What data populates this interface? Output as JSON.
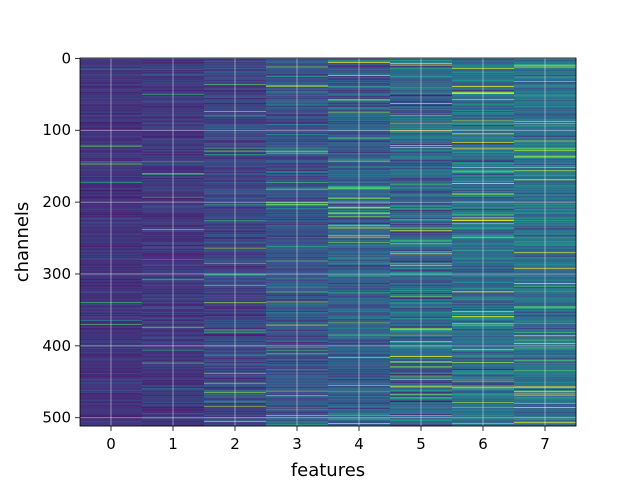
{
  "chart_data": {
    "type": "heatmap",
    "xlabel": "features",
    "ylabel": "channels",
    "x_categories": [
      "0",
      "1",
      "2",
      "3",
      "4",
      "5",
      "6",
      "7"
    ],
    "x_ticks": [
      0,
      1,
      2,
      3,
      4,
      5,
      6,
      7
    ],
    "y_ticks": [
      0,
      100,
      200,
      300,
      400,
      500
    ],
    "n_rows": 512,
    "n_cols": 8,
    "y_inverted": true,
    "grid": true,
    "colormap": "viridis",
    "value_range": [
      0,
      1
    ],
    "column_mean_values": [
      0.17,
      0.18,
      0.22,
      0.26,
      0.31,
      0.34,
      0.36,
      0.38
    ],
    "column_spread": [
      0.05,
      0.06,
      0.08,
      0.1,
      0.13,
      0.18,
      0.15,
      0.14
    ],
    "colors": {
      "cmap_low": "#440154",
      "cmap_dark_blue": "#3b528b",
      "cmap_teal": "#21918c",
      "cmap_green": "#5ec962",
      "cmap_high": "#fde725",
      "grid": "#ffffff",
      "axes_edge": "#000000"
    }
  }
}
